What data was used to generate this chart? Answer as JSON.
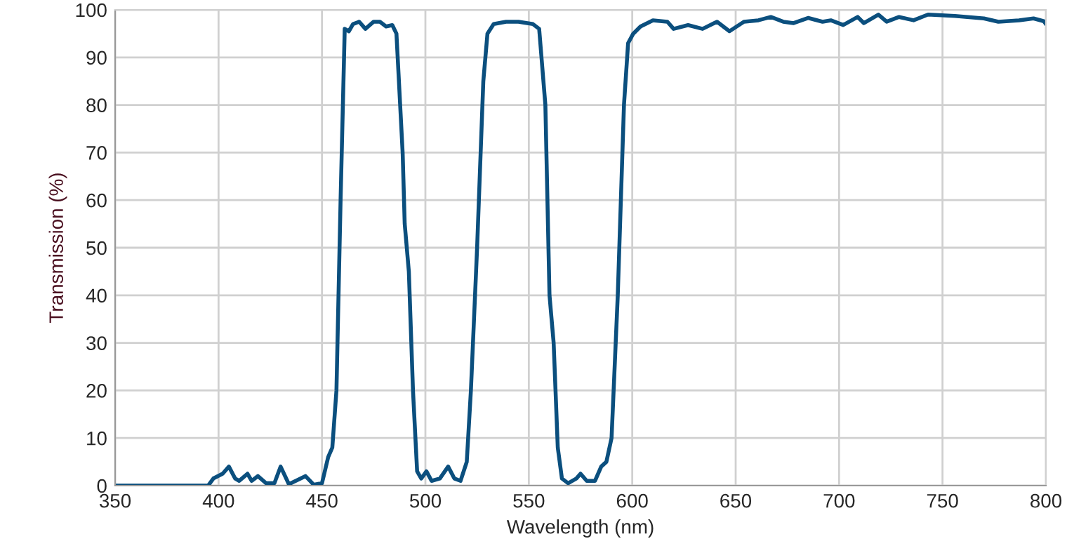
{
  "chart_data": {
    "type": "line",
    "xlabel": "Wavelength (nm)",
    "ylabel": "Transmission (%)",
    "xlim": [
      350,
      800
    ],
    "ylim": [
      0,
      100
    ],
    "xticks": [
      350,
      400,
      450,
      500,
      550,
      600,
      650,
      700,
      750,
      800
    ],
    "yticks": [
      0,
      10,
      20,
      30,
      40,
      50,
      60,
      70,
      80,
      90,
      100
    ],
    "grid": true,
    "marker": "none",
    "line_style": "solid",
    "series": [
      {
        "color": "#0b4f7e",
        "x": [
          350,
          370,
          395,
          397.5,
          402,
          405,
          408,
          410,
          414,
          416,
          419,
          423,
          427,
          430,
          434,
          442,
          446,
          450,
          453,
          455,
          457,
          459,
          461,
          463,
          465,
          468,
          471,
          475,
          478,
          481,
          484,
          486,
          489,
          490,
          492,
          494,
          496,
          498,
          500.5,
          503,
          507,
          511,
          514,
          517,
          520,
          522,
          525,
          528,
          530,
          533,
          539,
          545,
          552,
          555,
          558,
          560,
          562,
          564,
          566,
          569,
          573,
          575,
          578,
          582,
          585,
          587.5,
          590,
          593,
          596,
          598,
          600.5,
          604,
          610,
          617,
          620,
          627,
          634,
          641,
          647,
          654,
          661,
          667,
          673,
          678,
          685,
          692,
          696,
          702,
          709,
          712,
          719,
          723,
          729,
          736,
          743,
          756,
          770,
          777,
          787,
          794,
          799,
          800
        ],
        "values": [
          0,
          0,
          0,
          1.5,
          2.5,
          4,
          1.5,
          1,
          2.5,
          1,
          2,
          0.5,
          0.5,
          4,
          0.3,
          2,
          0.2,
          0.5,
          6,
          8,
          20,
          60,
          96,
          95.5,
          97,
          97.5,
          96,
          97.5,
          97.5,
          96.5,
          96.8,
          95,
          70,
          55,
          45,
          20,
          3,
          1.5,
          3,
          1,
          1.5,
          4,
          1.5,
          1,
          5,
          20,
          50,
          85,
          95,
          97,
          97.5,
          97.5,
          97,
          96,
          80,
          40,
          30,
          8,
          1.5,
          0.5,
          1.5,
          2.5,
          1,
          1,
          4,
          5,
          10,
          40,
          80,
          93,
          95,
          96.5,
          97.8,
          97.5,
          96,
          96.8,
          96,
          97.5,
          95.5,
          97.5,
          97.8,
          98.5,
          97.5,
          97.2,
          98.3,
          97.5,
          97.8,
          96.8,
          98.5,
          97.2,
          99,
          97.5,
          98.5,
          97.8,
          99,
          98.7,
          98.2,
          97.5,
          97.8,
          98.2,
          97.6,
          97
        ]
      }
    ]
  }
}
